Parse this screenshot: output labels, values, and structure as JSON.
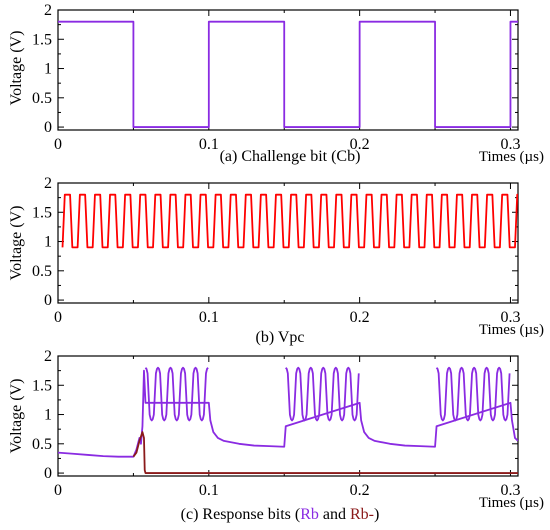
{
  "colors": {
    "purple": "#8a2be2",
    "red": "#ff0000",
    "brown": "#8b1a1a",
    "axis": "#000000"
  },
  "chart_data": [
    {
      "type": "line",
      "caption": "(a) Challenge bit (Cb)",
      "ylabel": "Voltage (V)",
      "xlabel": "Times (µs)",
      "xlim": [
        0,
        0.305
      ],
      "ylim": [
        -0.05,
        2.0
      ],
      "xticks": [
        0,
        0.1,
        0.2,
        0.3
      ],
      "xtick_labels": [
        "0",
        "0.1",
        "0.2",
        "0.3"
      ],
      "yticks": [
        0,
        0.5,
        1,
        1.5,
        2
      ],
      "ytick_labels": [
        "0",
        "0.5",
        "1",
        "1.5",
        "2"
      ],
      "series": [
        {
          "color": "#8a2be2",
          "x": [
            0,
            0.05,
            0.05,
            0.1,
            0.1,
            0.15,
            0.15,
            0.2,
            0.2,
            0.25,
            0.25,
            0.3,
            0.3,
            0.305
          ],
          "y": [
            1.8,
            1.8,
            0,
            0,
            1.8,
            1.8,
            0,
            0,
            1.8,
            1.8,
            0,
            0,
            1.8,
            1.8
          ]
        }
      ]
    },
    {
      "type": "line",
      "caption": "(b) Vpc",
      "ylabel": "Voltage (V)",
      "xlabel": "Times (µs)",
      "xlim": [
        0,
        0.305
      ],
      "ylim": [
        -0.05,
        2.0
      ],
      "xticks": [
        0,
        0.1,
        0.2,
        0.3
      ],
      "xtick_labels": [
        "0",
        "0.1",
        "0.2",
        "0.3"
      ],
      "yticks": [
        0,
        0.5,
        1,
        1.5,
        2
      ],
      "ytick_labels": [
        "0",
        "0.5",
        "1",
        "1.5",
        "2"
      ],
      "series": [
        {
          "color": "#ff0000",
          "waveform": "trapezoid",
          "period": 0.01,
          "low": 0.9,
          "high": 1.8,
          "start": 0.003,
          "end": 0.305
        }
      ]
    },
    {
      "type": "line",
      "caption_parts": [
        {
          "text": "(c) Response bits (",
          "color": "#000000"
        },
        {
          "text": "Rb",
          "color": "#8a2be2"
        },
        {
          "text": " and ",
          "color": "#000000"
        },
        {
          "text": "Rb-",
          "color": "#8b1a1a"
        },
        {
          "text": ")",
          "color": "#000000"
        }
      ],
      "ylabel": "Voltage (V)",
      "xlabel": "Times (µs)",
      "xlim": [
        0,
        0.305
      ],
      "ylim": [
        -0.05,
        2.0
      ],
      "xticks": [
        0,
        0.1,
        0.2,
        0.3
      ],
      "xtick_labels": [
        "0",
        "0.1",
        "0.2",
        "0.3"
      ],
      "yticks": [
        0,
        0.5,
        1,
        1.5,
        2
      ],
      "ytick_labels": [
        "0",
        "0.5",
        "1",
        "1.5",
        "2"
      ],
      "series": [
        {
          "name": "Rb",
          "color": "#8a2be2",
          "x": [
            0,
            0.01,
            0.02,
            0.03,
            0.04,
            0.05,
            0.052,
            0.054,
            0.055,
            0.056,
            0.057,
            0.058,
            0.1,
            0.101,
            0.103,
            0.106,
            0.11,
            0.12,
            0.13,
            0.14,
            0.15,
            0.151,
            0.2,
            0.201,
            0.203,
            0.206,
            0.21,
            0.22,
            0.23,
            0.24,
            0.25,
            0.251,
            0.3,
            0.301,
            0.303,
            0.305
          ],
          "y": [
            0.35,
            0.33,
            0.31,
            0.29,
            0.28,
            0.28,
            0.4,
            0.6,
            0.5,
            0.8,
            1.75,
            1.2,
            1.2,
            0.9,
            0.7,
            0.6,
            0.55,
            0.5,
            0.47,
            0.46,
            0.45,
            0.8,
            1.2,
            0.9,
            0.7,
            0.6,
            0.55,
            0.5,
            0.47,
            0.46,
            0.45,
            0.8,
            1.2,
            0.9,
            0.6,
            0.55
          ],
          "oscillations": [
            {
              "start": 0.058,
              "end": 0.1,
              "period": 0.0083,
              "low": 0.9,
              "high": 1.8
            },
            {
              "start": 0.151,
              "end": 0.2,
              "period": 0.0083,
              "low": 0.9,
              "high": 1.8
            },
            {
              "start": 0.251,
              "end": 0.3,
              "period": 0.0083,
              "low": 0.9,
              "high": 1.8
            }
          ]
        },
        {
          "name": "Rb-",
          "color": "#8b1a1a",
          "x": [
            0.05,
            0.052,
            0.054,
            0.056,
            0.057,
            0.0575,
            0.058,
            0.305
          ],
          "y": [
            0.28,
            0.35,
            0.55,
            0.7,
            0.6,
            0.05,
            0,
            0
          ]
        }
      ]
    }
  ]
}
